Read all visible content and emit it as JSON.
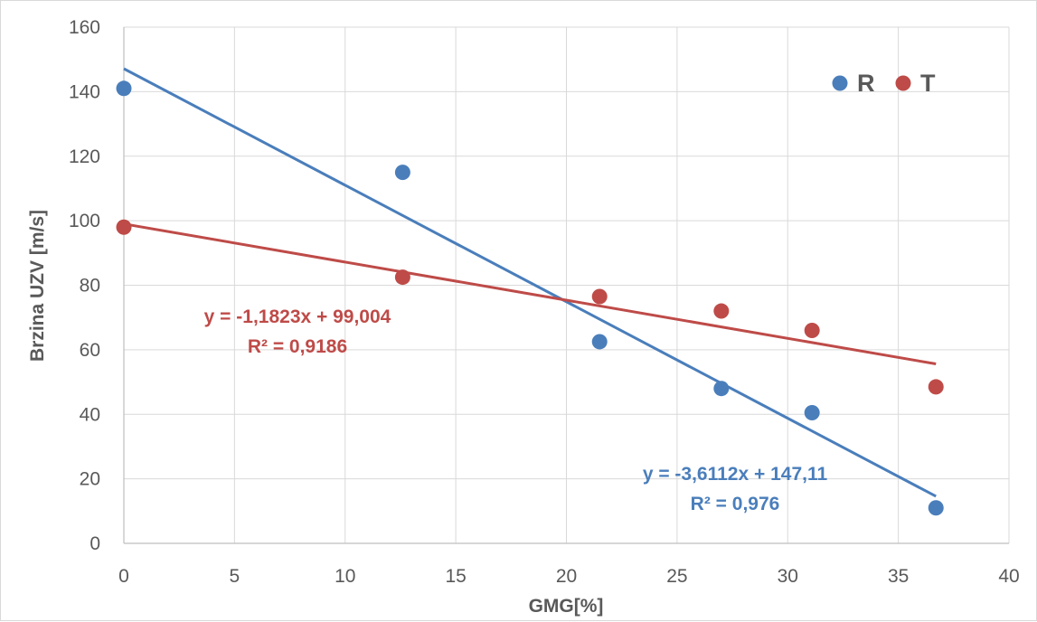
{
  "colors": {
    "R": "#4a7ebb",
    "T": "#be4b48",
    "grid": "#d9d9d9",
    "axis": "#bfbfbf",
    "text": "#595959"
  },
  "chart_data": {
    "type": "scatter",
    "xlabel": "GMG[%]",
    "ylabel": "Brzina UZV [m/s]",
    "xlim": [
      0,
      40
    ],
    "ylim": [
      0,
      160
    ],
    "x_ticks": [
      "0",
      "5",
      "10",
      "15",
      "20",
      "25",
      "30",
      "35",
      "40"
    ],
    "y_ticks": [
      "0",
      "20",
      "40",
      "60",
      "80",
      "100",
      "120",
      "140",
      "160"
    ],
    "grid": true,
    "legend_position": "top-right",
    "series": [
      {
        "name": "R",
        "color": "#4a7ebb",
        "points": [
          [
            0,
            141
          ],
          [
            12.6,
            115
          ],
          [
            21.5,
            62.5
          ],
          [
            27.0,
            48
          ],
          [
            31.1,
            40.5
          ],
          [
            36.7,
            11
          ]
        ],
        "trendline": {
          "slope": -3.6112,
          "intercept": 147.11,
          "x_range": [
            0,
            36.7
          ],
          "equation": "y = -3,6112x + 147,11",
          "r2": "R² = 0,976"
        }
      },
      {
        "name": "T",
        "color": "#be4b48",
        "points": [
          [
            0,
            98
          ],
          [
            12.6,
            82.5
          ],
          [
            21.5,
            76.5
          ],
          [
            27.0,
            72
          ],
          [
            31.1,
            66
          ],
          [
            36.7,
            48.5
          ]
        ],
        "trendline": {
          "slope": -1.1823,
          "intercept": 99.004,
          "x_range": [
            0,
            36.7
          ],
          "equation": "y = -1,1823x + 99,004",
          "r2": "R² = 0,9186"
        }
      }
    ]
  }
}
